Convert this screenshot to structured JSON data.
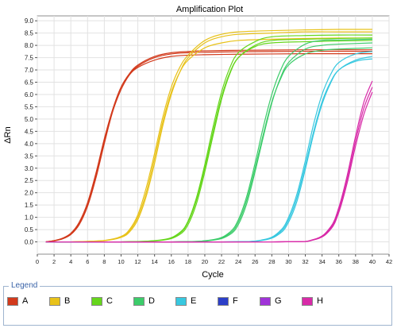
{
  "chart_data": {
    "type": "line",
    "title": "Amplification Plot",
    "xlabel": "Cycle",
    "ylabel": "ΔRn",
    "xlim": [
      0,
      42
    ],
    "ylim": [
      -0.5,
      9.2
    ],
    "x_ticks": [
      "0",
      "2",
      "4",
      "6",
      "8",
      "10",
      "12",
      "14",
      "16",
      "18",
      "20",
      "22",
      "24",
      "26",
      "28",
      "30",
      "32",
      "34",
      "36",
      "38",
      "40",
      "42"
    ],
    "y_ticks": [
      "0.0",
      "0.5",
      "1.0",
      "1.5",
      "2.0",
      "2.5",
      "3.0",
      "3.5",
      "4.0",
      "4.5",
      "5.0",
      "5.5",
      "6.0",
      "6.5",
      "7.0",
      "7.5",
      "8.0",
      "8.5",
      "9.0"
    ],
    "grid": true,
    "legend_title": "Legend",
    "legend_position": "bottom",
    "series": [
      {
        "name": "A",
        "color": "#d23a1c",
        "curves": [
          {
            "x": [
              1,
              2,
              3,
              4,
              5,
              6,
              7,
              8,
              9,
              10,
              11,
              12,
              14,
              16,
              18,
              20,
              24,
              28,
              32,
              36,
              40
            ],
            "y": [
              0.0,
              0.05,
              0.15,
              0.35,
              0.8,
              1.6,
              2.8,
              4.2,
              5.4,
              6.3,
              6.8,
              7.1,
              7.4,
              7.55,
              7.6,
              7.62,
              7.64,
              7.65,
              7.66,
              7.66,
              7.66
            ]
          },
          {
            "x": [
              1,
              2,
              3,
              4,
              5,
              6,
              7,
              8,
              9,
              10,
              11,
              12,
              14,
              16,
              18,
              20,
              24,
              28,
              32,
              36,
              40
            ],
            "y": [
              0.0,
              0.04,
              0.12,
              0.3,
              0.7,
              1.45,
              2.6,
              4.0,
              5.3,
              6.2,
              6.8,
              7.15,
              7.5,
              7.65,
              7.7,
              7.72,
              7.74,
              7.75,
              7.76,
              7.76,
              7.76
            ]
          },
          {
            "x": [
              1,
              2,
              3,
              4,
              5,
              6,
              7,
              8,
              9,
              10,
              11,
              12,
              14,
              16,
              18,
              20,
              24,
              28,
              32,
              36,
              40
            ],
            "y": [
              0.0,
              0.05,
              0.14,
              0.33,
              0.75,
              1.5,
              2.7,
              4.1,
              5.35,
              6.3,
              6.85,
              7.2,
              7.55,
              7.7,
              7.75,
              7.78,
              7.8,
              7.81,
              7.82,
              7.82,
              7.82
            ]
          }
        ]
      },
      {
        "name": "B",
        "color": "#e8c21a",
        "curves": [
          {
            "x": [
              1,
              4,
              8,
              10,
              11,
              12,
              13,
              14,
              15,
              16,
              17,
              18,
              20,
              22,
              24,
              28,
              32,
              36,
              40
            ],
            "y": [
              0.0,
              0.0,
              0.05,
              0.2,
              0.45,
              1.0,
              2.0,
              3.4,
              4.9,
              6.1,
              6.9,
              7.4,
              7.9,
              8.1,
              8.2,
              8.25,
              8.28,
              8.3,
              8.3
            ]
          },
          {
            "x": [
              1,
              4,
              8,
              10,
              11,
              12,
              13,
              14,
              15,
              16,
              17,
              18,
              20,
              22,
              24,
              28,
              32,
              36,
              40
            ],
            "y": [
              0.0,
              0.0,
              0.05,
              0.18,
              0.4,
              0.9,
              1.85,
              3.2,
              4.75,
              6.0,
              6.9,
              7.5,
              8.1,
              8.35,
              8.45,
              8.5,
              8.55,
              8.55,
              8.55
            ]
          },
          {
            "x": [
              1,
              4,
              8,
              10,
              11,
              12,
              13,
              14,
              15,
              16,
              17,
              18,
              20,
              22,
              24,
              28,
              32,
              36,
              40
            ],
            "y": [
              0.0,
              0.0,
              0.06,
              0.22,
              0.5,
              1.1,
              2.2,
              3.6,
              5.1,
              6.3,
              7.1,
              7.6,
              8.2,
              8.45,
              8.55,
              8.6,
              8.63,
              8.65,
              8.65
            ]
          }
        ]
      },
      {
        "name": "C",
        "color": "#66d61c",
        "curves": [
          {
            "x": [
              1,
              10,
              15,
              17,
              18,
              19,
              20,
              21,
              22,
              23,
              24,
              26,
              28,
              32,
              36,
              40
            ],
            "y": [
              0.0,
              0.0,
              0.08,
              0.35,
              0.8,
              1.7,
              3.0,
              4.5,
              5.9,
              6.9,
              7.5,
              7.95,
              8.1,
              8.15,
              8.18,
              8.2
            ]
          },
          {
            "x": [
              1,
              10,
              15,
              17,
              18,
              19,
              20,
              21,
              22,
              23,
              24,
              26,
              28,
              32,
              36,
              40
            ],
            "y": [
              0.0,
              0.0,
              0.07,
              0.3,
              0.7,
              1.55,
              2.85,
              4.35,
              5.8,
              6.85,
              7.5,
              8.0,
              8.2,
              8.25,
              8.28,
              8.3
            ]
          },
          {
            "x": [
              1,
              10,
              15,
              17,
              18,
              19,
              20,
              21,
              22,
              23,
              24,
              26,
              28,
              32,
              36,
              40
            ],
            "y": [
              0.0,
              0.0,
              0.09,
              0.38,
              0.85,
              1.8,
              3.15,
              4.7,
              6.1,
              7.1,
              7.7,
              8.15,
              8.35,
              8.4,
              8.42,
              8.42
            ]
          }
        ]
      },
      {
        "name": "D",
        "color": "#3ccc6a",
        "curves": [
          {
            "x": [
              1,
              16,
              21,
              23,
              24,
              25,
              26,
              27,
              28,
              29,
              30,
              32,
              34,
              36,
              40
            ],
            "y": [
              0.0,
              0.0,
              0.08,
              0.35,
              0.8,
              1.7,
              3.0,
              4.4,
              5.7,
              6.6,
              7.2,
              7.65,
              7.8,
              7.85,
              7.9
            ]
          },
          {
            "x": [
              1,
              16,
              21,
              23,
              24,
              25,
              26,
              27,
              28,
              29,
              30,
              32,
              34,
              36,
              40
            ],
            "y": [
              0.0,
              0.0,
              0.07,
              0.3,
              0.7,
              1.55,
              2.85,
              4.3,
              5.65,
              6.65,
              7.3,
              7.85,
              8.0,
              8.05,
              8.1
            ]
          },
          {
            "x": [
              1,
              16,
              21,
              23,
              24,
              25,
              26,
              27,
              28,
              29,
              30,
              32,
              34,
              36,
              40
            ],
            "y": [
              0.0,
              0.0,
              0.09,
              0.4,
              0.9,
              1.85,
              3.2,
              4.7,
              6.0,
              6.95,
              7.55,
              8.05,
              8.2,
              8.22,
              8.25
            ]
          }
        ]
      },
      {
        "name": "E",
        "color": "#38c8e0",
        "curves": [
          {
            "x": [
              1,
              22,
              27,
              29,
              30,
              31,
              32,
              33,
              34,
              35,
              36,
              38,
              40
            ],
            "y": [
              0.0,
              0.0,
              0.08,
              0.4,
              0.9,
              1.8,
              3.1,
              4.5,
              5.7,
              6.5,
              7.0,
              7.35,
              7.45
            ]
          },
          {
            "x": [
              1,
              22,
              27,
              29,
              30,
              31,
              32,
              33,
              34,
              35,
              36,
              38,
              40
            ],
            "y": [
              0.0,
              0.0,
              0.07,
              0.35,
              0.8,
              1.65,
              2.95,
              4.4,
              5.6,
              6.45,
              7.0,
              7.4,
              7.55
            ]
          },
          {
            "x": [
              1,
              22,
              27,
              29,
              30,
              31,
              32,
              33,
              34,
              35,
              36,
              38,
              40
            ],
            "y": [
              0.0,
              0.0,
              0.09,
              0.45,
              1.0,
              1.95,
              3.3,
              4.8,
              6.0,
              6.8,
              7.3,
              7.65,
              7.75
            ]
          }
        ]
      },
      {
        "name": "F",
        "color": "#2c3fc8",
        "curves": []
      },
      {
        "name": "G",
        "color": "#a033d8",
        "curves": []
      },
      {
        "name": "H",
        "color": "#d82aa8",
        "curves": [
          {
            "x": [
              1,
              28,
              33,
              35,
              36,
              37,
              38,
              39,
              40
            ],
            "y": [
              0.0,
              0.0,
              0.08,
              0.5,
              1.2,
              2.4,
              3.9,
              5.2,
              6.1
            ]
          },
          {
            "x": [
              1,
              28,
              33,
              35,
              36,
              37,
              38,
              39,
              40
            ],
            "y": [
              0.0,
              0.0,
              0.09,
              0.55,
              1.3,
              2.55,
              4.1,
              5.45,
              6.3
            ]
          },
          {
            "x": [
              1,
              28,
              33,
              35,
              36,
              37,
              38,
              39,
              40
            ],
            "y": [
              0.0,
              0.0,
              0.1,
              0.6,
              1.4,
              2.7,
              4.3,
              5.7,
              6.55
            ]
          }
        ]
      }
    ]
  }
}
